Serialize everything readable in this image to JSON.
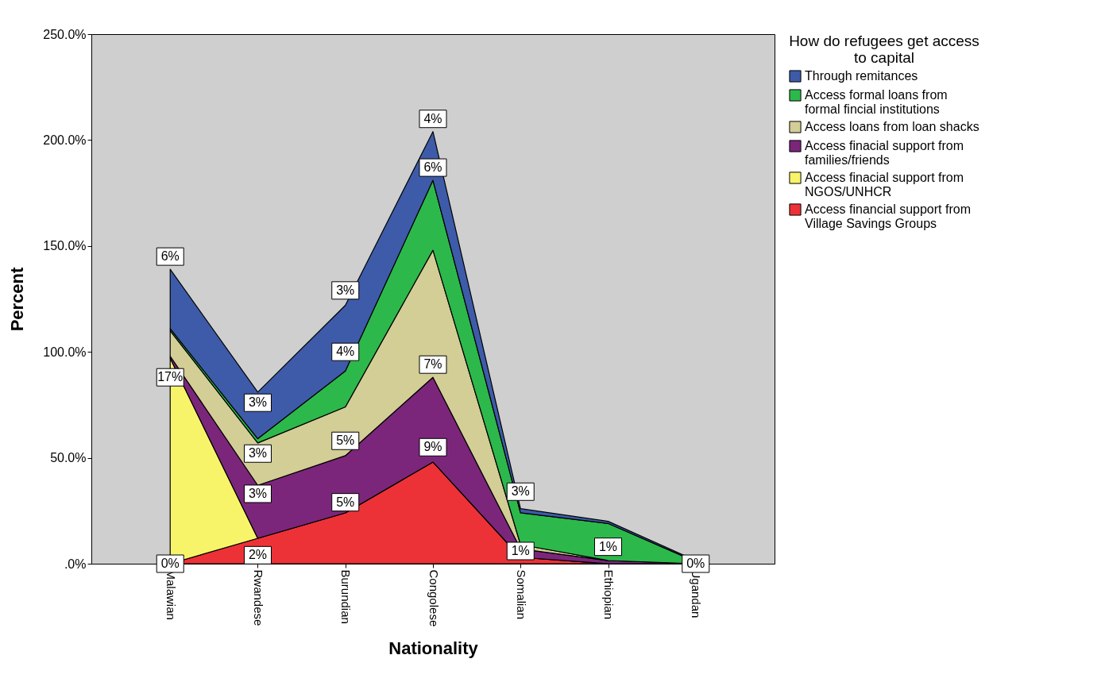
{
  "chart_data": {
    "type": "area",
    "stacked": true,
    "xlabel": "Nationality",
    "ylabel": "Percent",
    "legend_title": "How do refugees get access to capital",
    "legend": "top right",
    "grid": false,
    "categories": [
      "Malawian",
      "Rwandese",
      "Burundian",
      "Congolese",
      "Somalian",
      "Ethiopian",
      "Ugandan"
    ],
    "ylim": [
      0,
      250
    ],
    "yticks": [
      {
        "value": 0,
        "label": ".0%"
      },
      {
        "value": 50,
        "label": "50.0%"
      },
      {
        "value": 100,
        "label": "100.0%"
      },
      {
        "value": 150,
        "label": "150.0%"
      },
      {
        "value": 200,
        "label": "200.0%"
      },
      {
        "value": 250,
        "label": "250.0%"
      }
    ],
    "series": [
      {
        "name": "Access financial support from Village Savings Groups",
        "color": "#ec3237",
        "values": [
          0,
          12,
          24,
          48,
          3,
          0,
          0
        ]
      },
      {
        "name": "Access finacial support from NGOS/UNHCR",
        "color": "#f8f46a",
        "values": [
          97,
          0,
          0,
          0,
          0,
          0,
          0
        ]
      },
      {
        "name": "Access finacial support from families/friends",
        "color": "#7b267b",
        "values": [
          1,
          25,
          27,
          40,
          4,
          1.5,
          0
        ]
      },
      {
        "name": "Access loans from loan shacks",
        "color": "#d3cd96",
        "values": [
          12,
          20,
          23,
          60,
          2,
          0,
          0
        ]
      },
      {
        "name": "Access formal loans from formal fincial institutions",
        "color": "#2db84b",
        "values": [
          1,
          2,
          17,
          33,
          15,
          17.5,
          1
        ]
      },
      {
        "name": "Through remitances",
        "color": "#3e5ba9",
        "values": [
          28,
          22,
          31,
          23,
          2,
          1,
          0.5
        ]
      }
    ],
    "annotations": [
      {
        "text": "0%",
        "x": "Malawian",
        "y": 0
      },
      {
        "text": "17%",
        "x": "Malawian",
        "y": 88
      },
      {
        "text": "6%",
        "x": "Malawian",
        "y": 145
      },
      {
        "text": "2%",
        "x": "Rwandese",
        "y": 4
      },
      {
        "text": "3%",
        "x": "Rwandese",
        "y": 33
      },
      {
        "text": "3%",
        "x": "Rwandese",
        "y": 52
      },
      {
        "text": "3%",
        "x": "Rwandese",
        "y": 76
      },
      {
        "text": "5%",
        "x": "Burundian",
        "y": 29
      },
      {
        "text": "5%",
        "x": "Burundian",
        "y": 58
      },
      {
        "text": "4%",
        "x": "Burundian",
        "y": 100
      },
      {
        "text": "3%",
        "x": "Burundian",
        "y": 129
      },
      {
        "text": "9%",
        "x": "Congolese",
        "y": 55
      },
      {
        "text": "7%",
        "x": "Congolese",
        "y": 94
      },
      {
        "text": "6%",
        "x": "Congolese",
        "y": 187
      },
      {
        "text": "4%",
        "x": "Congolese",
        "y": 210
      },
      {
        "text": "1%",
        "x": "Somalian",
        "y": 6
      },
      {
        "text": "3%",
        "x": "Somalian",
        "y": 34
      },
      {
        "text": "1%",
        "x": "Ethiopian",
        "y": 8
      },
      {
        "text": "0%",
        "x": "Ugandan",
        "y": 0
      }
    ]
  }
}
